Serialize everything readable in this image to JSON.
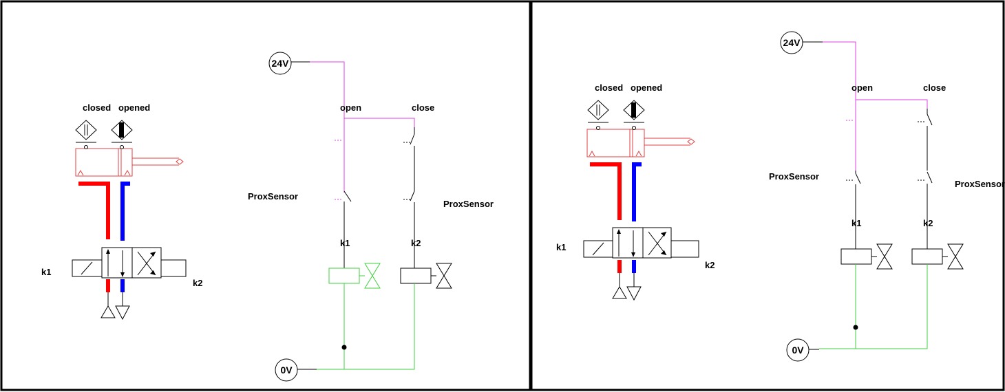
{
  "panels": [
    {
      "id": "left",
      "valve": {
        "closed_label": "closed",
        "opened_label": "opened",
        "k1_label": "k1",
        "k2_label": "k2"
      },
      "circuit": {
        "supply_label": "24V",
        "ground_label": "0V",
        "open_label": "open",
        "close_label": "close",
        "prox_left_label": "ProxSensor",
        "prox_right_label": "ProxSensor",
        "coil_k1_label": "k1",
        "coil_k2_label": "k2",
        "k1_coil_energized": true
      }
    },
    {
      "id": "right",
      "valve": {
        "closed_label": "closed",
        "opened_label": "opened",
        "k1_label": "k1",
        "k2_label": "k2"
      },
      "circuit": {
        "supply_label": "24V",
        "ground_label": "0V",
        "open_label": "open",
        "close_label": "close",
        "prox_left_label": "ProxSensor",
        "prox_right_label": "ProxSensor",
        "coil_k1_label": "k1",
        "coil_k2_label": "k2",
        "k1_coil_energized": false
      }
    }
  ],
  "colors": {
    "frame": "#000000",
    "supply_wire": "#e040e0",
    "ground_wire": "#40d040",
    "cylinder": "#e04040",
    "pressure_line": "#ff0000",
    "return_line": "#0000ff",
    "energized_coil": "#40d040",
    "symbol": "#000000"
  }
}
